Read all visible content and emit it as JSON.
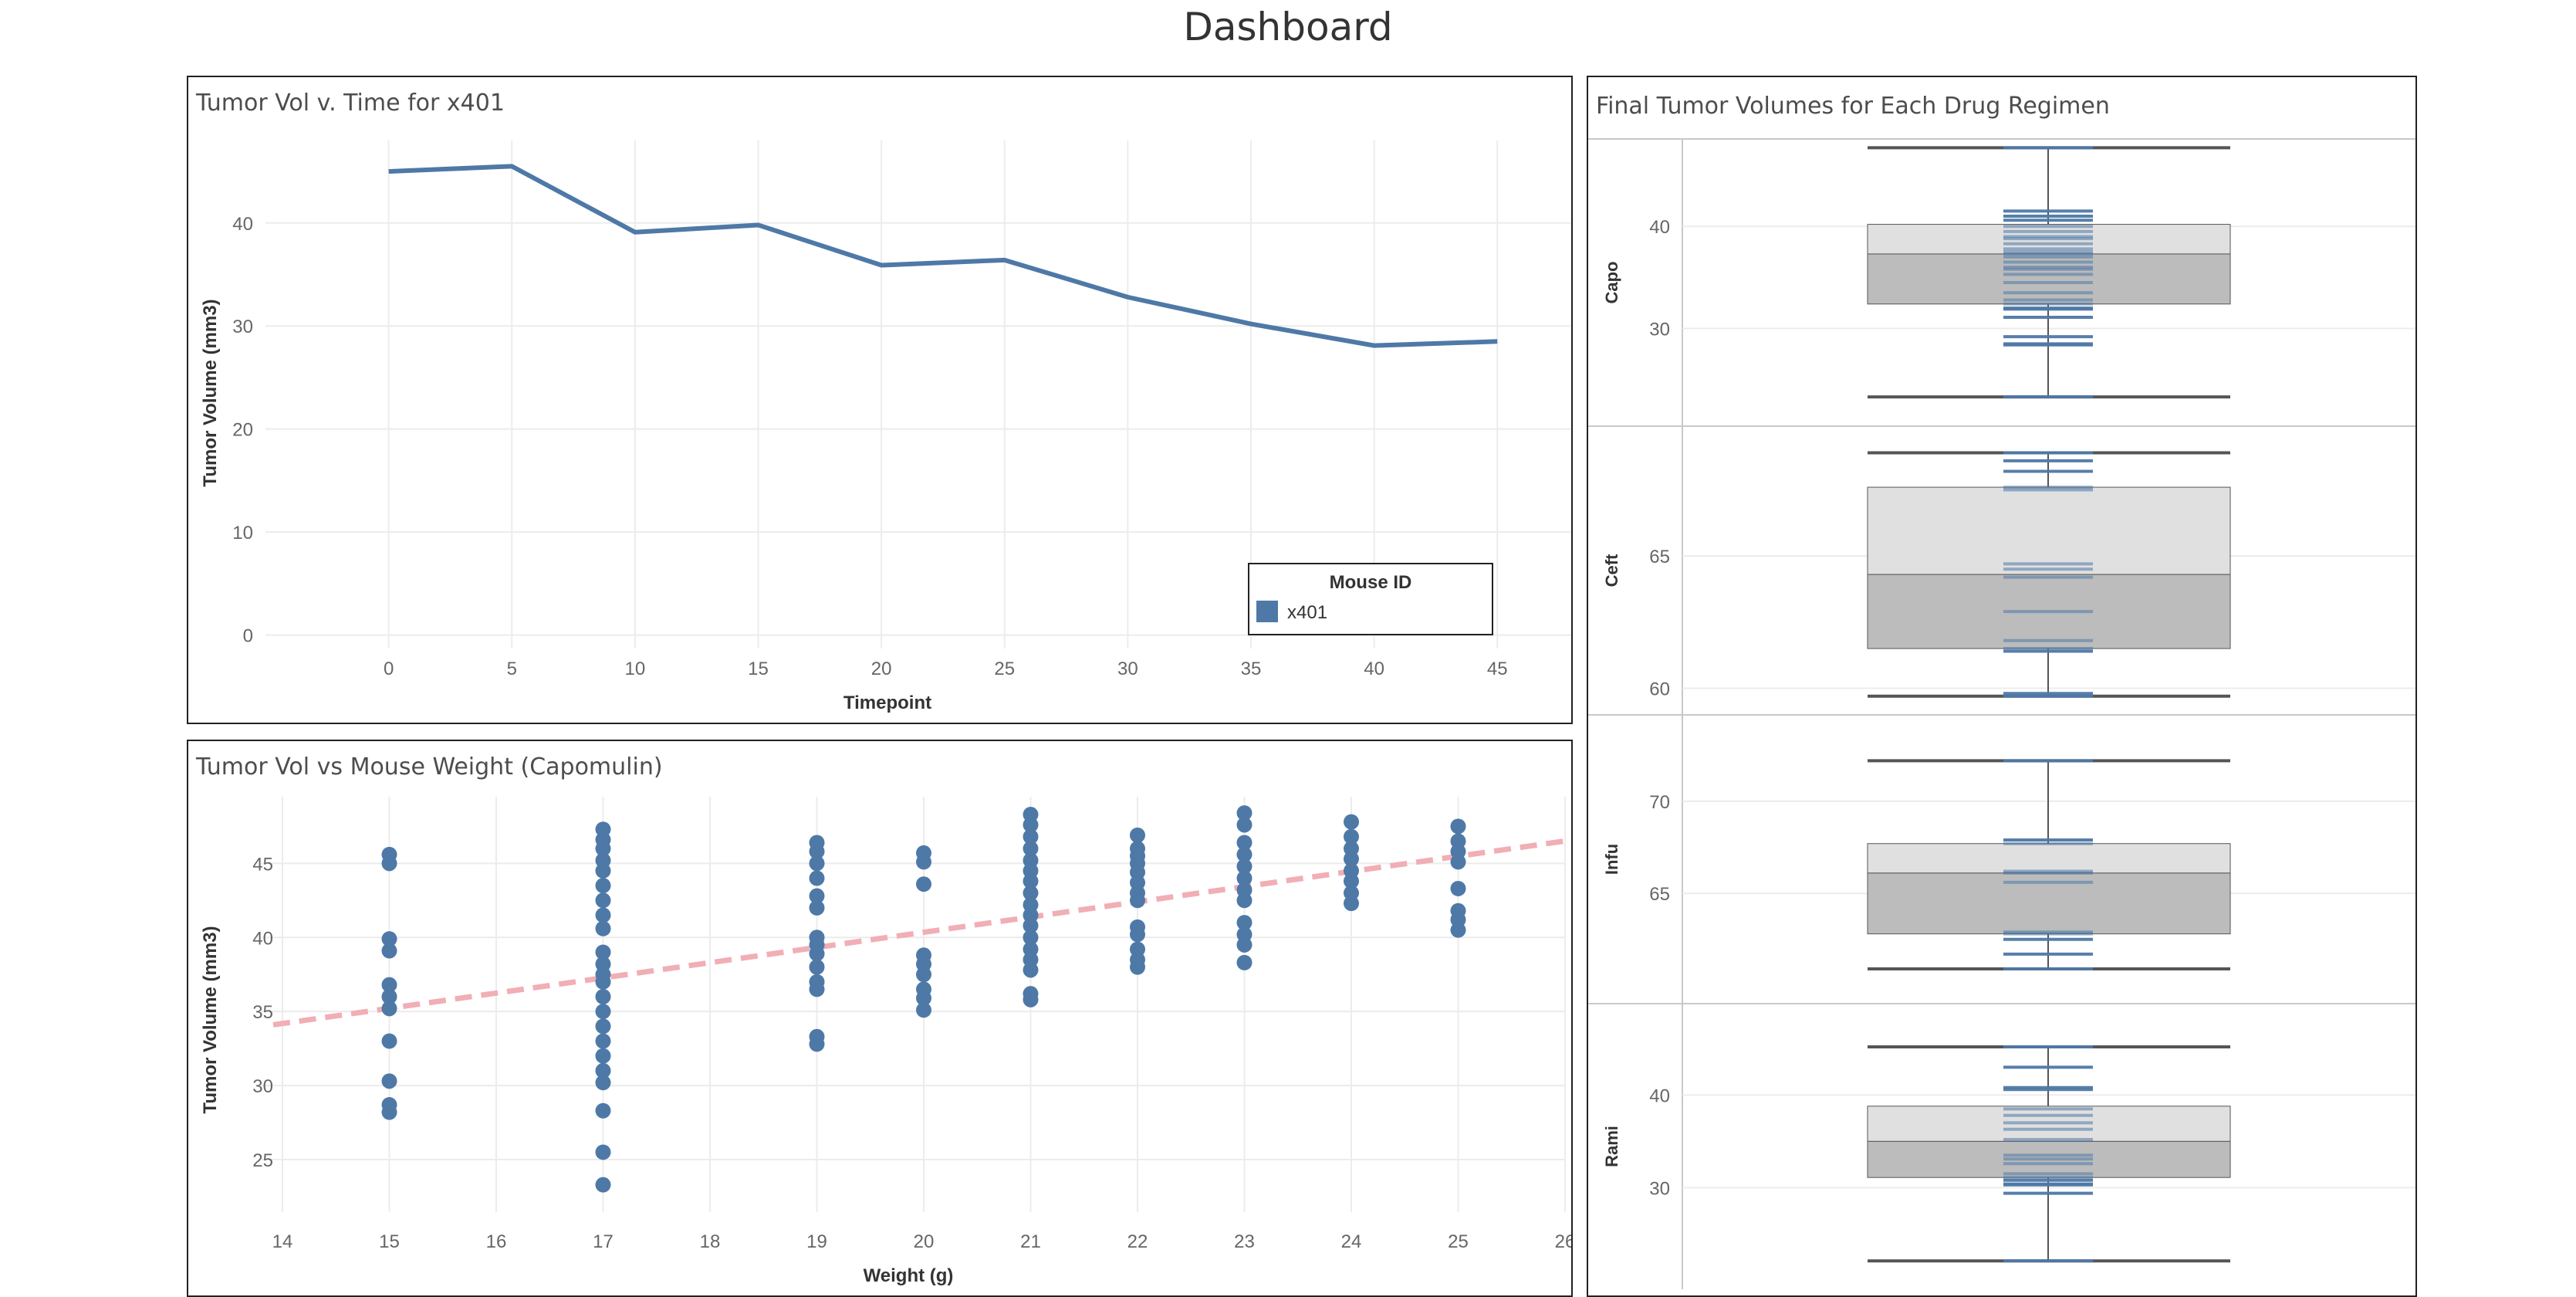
{
  "dashboard": {
    "title": "Dashboard"
  },
  "colors": {
    "series": "#4e79a7",
    "trend": "#f1aeb5",
    "grid": "#ececec",
    "box_upper": "#e0e0e0",
    "box_lower": "#bcbcbc",
    "whisker": "#555555"
  },
  "line_panel": {
    "title": "Tumor Vol v. Time for x401"
  },
  "scatter_panel": {
    "title": "Tumor Vol vs Mouse Weight (Capomulin)"
  },
  "box_panel": {
    "title": "Final Tumor Volumes for Each Drug Regimen"
  },
  "chart_data": [
    {
      "type": "line",
      "title": "Tumor Vol v. Time for x401",
      "xlabel": "Timepoint",
      "ylabel": "Tumor Volume (mm3)",
      "x": [
        0,
        5,
        10,
        15,
        20,
        25,
        30,
        35,
        40,
        45
      ],
      "x_ticks": [
        "0",
        "5",
        "10",
        "15",
        "20",
        "25",
        "30",
        "35",
        "40",
        "45"
      ],
      "y_ticks": [
        "0",
        "10",
        "20",
        "30",
        "40"
      ],
      "xlim": [
        -5,
        48
      ],
      "ylim": [
        -1,
        48
      ],
      "series": [
        {
          "name": "x401",
          "values": [
            45.0,
            45.5,
            39.1,
            39.8,
            35.9,
            36.4,
            32.8,
            30.2,
            28.1,
            28.5
          ]
        }
      ],
      "legend": {
        "title": "Mouse ID",
        "entries": [
          "x401"
        ],
        "position": "bottom-right"
      },
      "grid": true
    },
    {
      "type": "scatter",
      "title": "Tumor Vol vs Mouse Weight (Capomulin)",
      "xlabel": "Weight (g)",
      "ylabel": "Tumor Volume (mm3)",
      "x_ticks": [
        "14",
        "15",
        "16",
        "17",
        "18",
        "19",
        "20",
        "21",
        "22",
        "23",
        "24",
        "25",
        "26"
      ],
      "y_ticks": [
        "25",
        "30",
        "35",
        "40",
        "45"
      ],
      "xlim": [
        14,
        26
      ],
      "ylim": [
        22.5,
        49.5
      ],
      "grid": true,
      "trendline": {
        "x": [
          14,
          26
        ],
        "y": [
          34.1,
          46.6
        ],
        "style": "dashed"
      },
      "points": [
        {
          "x": 15,
          "y": [
            45.6,
            45.0,
            39.9,
            39.1,
            36.8,
            36.0,
            35.2,
            33.0,
            30.3,
            28.7,
            28.2
          ]
        },
        {
          "x": 17,
          "y": [
            47.3,
            46.6,
            46.0,
            45.2,
            44.5,
            43.5,
            42.5,
            41.5,
            40.6,
            39.0,
            38.2,
            37.5,
            37.0,
            36.0,
            35.0,
            34.0,
            33.0,
            32.0,
            31.0,
            30.2,
            28.3,
            25.5,
            23.3
          ]
        },
        {
          "x": 19,
          "y": [
            46.4,
            45.8,
            45.0,
            44.0,
            42.8,
            42.0,
            40.0,
            39.5,
            38.9,
            38.0,
            37.0,
            36.5,
            33.3,
            32.8
          ]
        },
        {
          "x": 20,
          "y": [
            45.7,
            45.1,
            43.6,
            38.8,
            38.2,
            37.5,
            36.5,
            35.9,
            35.1
          ]
        },
        {
          "x": 21,
          "y": [
            48.3,
            47.6,
            46.8,
            46.0,
            45.2,
            44.5,
            43.8,
            43.0,
            42.2,
            41.5,
            40.8,
            40.0,
            39.2,
            38.5,
            37.8,
            36.2,
            35.8
          ]
        },
        {
          "x": 22,
          "y": [
            46.9,
            46.0,
            45.5,
            45.0,
            44.4,
            43.7,
            43.0,
            42.5,
            40.7,
            40.2,
            39.2,
            38.5,
            38.0
          ]
        },
        {
          "x": 23,
          "y": [
            48.4,
            47.6,
            46.4,
            45.6,
            44.8,
            44.0,
            43.2,
            42.5,
            41.0,
            40.2,
            39.5,
            38.3
          ]
        },
        {
          "x": 24,
          "y": [
            47.8,
            46.8,
            46.0,
            45.3,
            44.5,
            43.8,
            43.0,
            42.3
          ]
        },
        {
          "x": 25,
          "y": [
            47.5,
            46.5,
            45.8,
            45.1,
            43.3,
            41.8,
            41.2,
            40.5
          ]
        }
      ]
    },
    {
      "type": "box",
      "title": "Final Tumor Volumes for Each Drug Regimen",
      "boxes": [
        {
          "category": "Capo",
          "ylim": [
            21.5,
            47.5
          ],
          "y_ticks": [
            30,
            40
          ],
          "min": 23.3,
          "q1": 32.4,
          "median": 37.3,
          "q3": 40.2,
          "max": 47.7,
          "values": [
            47.7,
            41.5,
            41.0,
            40.6,
            40.0,
            39.5,
            39.0,
            38.8,
            38.3,
            37.8,
            37.5,
            37.3,
            37.0,
            36.5,
            36.0,
            35.8,
            35.3,
            34.5,
            33.5,
            32.8,
            32.4,
            32.0,
            31.9,
            31.1,
            29.2,
            28.5,
            28.4,
            23.3
          ]
        },
        {
          "category": "Ceft",
          "ylim": [
            59.4,
            69.5
          ],
          "y_ticks": [
            60,
            65
          ],
          "min": 59.7,
          "q1": 61.5,
          "median": 64.3,
          "q3": 67.6,
          "max": 68.9,
          "values": [
            68.9,
            68.6,
            68.2,
            67.6,
            67.5,
            64.7,
            64.5,
            64.2,
            62.9,
            61.8,
            61.5,
            61.4,
            59.8,
            59.7
          ]
        },
        {
          "category": "Infu",
          "ylim": [
            59.6,
            74.1
          ],
          "y_ticks": [
            65,
            70
          ],
          "min": 60.9,
          "q1": 62.8,
          "median": 66.1,
          "q3": 67.7,
          "max": 72.2,
          "values": [
            72.2,
            67.9,
            67.7,
            66.2,
            66.1,
            65.6,
            62.9,
            62.8,
            62.5,
            61.7,
            60.9
          ]
        },
        {
          "category": "Rami",
          "ylim": [
            20.2,
            48.7
          ],
          "y_ticks": [
            30,
            40
          ],
          "min": 22.1,
          "q1": 31.1,
          "median": 35.0,
          "q3": 38.8,
          "max": 45.2,
          "values": [
            45.2,
            43.0,
            40.8,
            40.6,
            38.5,
            37.8,
            37.0,
            36.3,
            35.2,
            33.5,
            33.1,
            32.6,
            31.5,
            31.1,
            30.8,
            30.4,
            30.3,
            29.4,
            22.1
          ]
        }
      ]
    }
  ]
}
